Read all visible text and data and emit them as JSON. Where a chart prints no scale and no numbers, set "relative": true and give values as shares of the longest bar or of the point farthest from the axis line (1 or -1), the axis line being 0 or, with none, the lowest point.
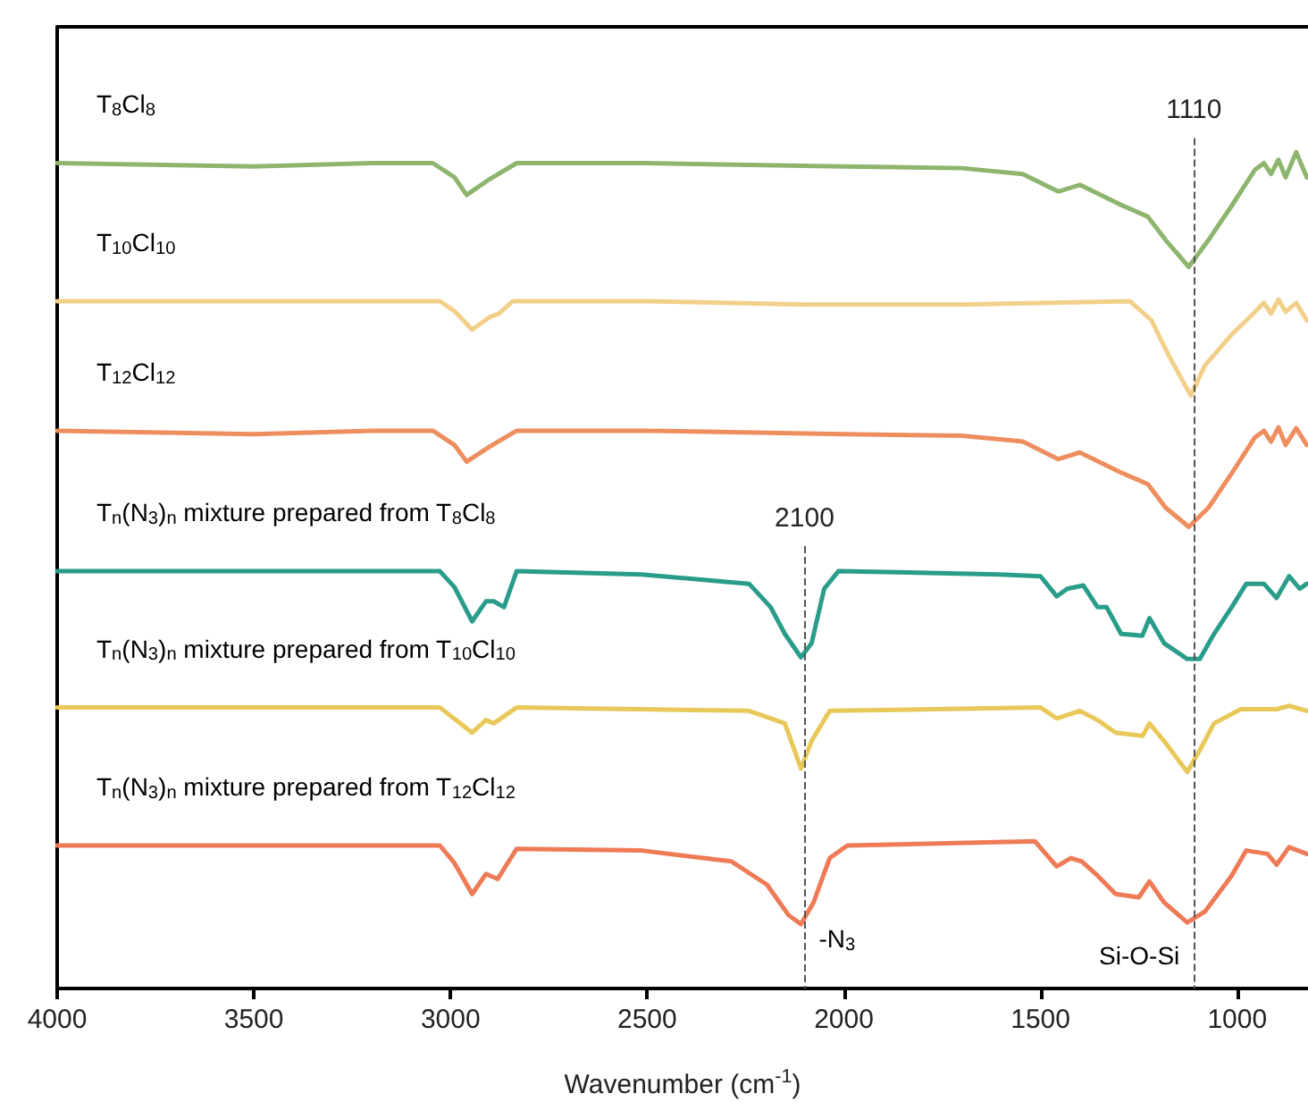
{
  "chart_data": {
    "type": "line",
    "relative": true,
    "xlabel": "Wavenumber (cm$^{-1}$)",
    "xlim": [
      4000,
      820
    ],
    "xticks": [
      4000,
      3500,
      3000,
      2500,
      2000,
      1500,
      1000
    ],
    "marker": "none",
    "series": [
      {
        "name": "T$_{8}$Cl$_{8}$",
        "color": "#8db56e",
        "x": [
          4000,
          3500,
          3200,
          3045,
          2990,
          2959,
          2900,
          2832,
          2500,
          2000,
          1700,
          1545,
          1455,
          1400,
          1300,
          1227,
          1182,
          1123,
          1073,
          1014,
          955,
          932,
          914,
          895,
          877,
          850,
          823
        ],
        "values": [
          0.987,
          0.983,
          0.987,
          0.987,
          0.97,
          0.949,
          0.968,
          0.987,
          0.987,
          0.983,
          0.981,
          0.974,
          0.953,
          0.961,
          0.938,
          0.923,
          0.895,
          0.863,
          0.895,
          0.936,
          0.979,
          0.987,
          0.974,
          0.991,
          0.97,
          1.0,
          0.97
        ]
      },
      {
        "name": "T$_{10}$Cl$_{10}$",
        "color": "#f2d08a",
        "x": [
          4000,
          3500,
          3027,
          2990,
          2945,
          2900,
          2877,
          2841,
          2500,
          2100,
          1700,
          1273,
          1218,
          1173,
          1118,
          1082,
          1014,
          968,
          932,
          914,
          895,
          877,
          850,
          823
        ],
        "values": [
          0.822,
          0.822,
          0.822,
          0.81,
          0.788,
          0.803,
          0.807,
          0.822,
          0.822,
          0.818,
          0.818,
          0.822,
          0.799,
          0.756,
          0.709,
          0.745,
          0.782,
          0.803,
          0.82,
          0.807,
          0.824,
          0.809,
          0.82,
          0.799
        ]
      },
      {
        "name": "T$_{12}$Cl$_{12}$",
        "color": "#ee8e5e",
        "x": [
          4000,
          3500,
          3200,
          3045,
          2990,
          2959,
          2900,
          2832,
          2500,
          2000,
          1700,
          1545,
          1455,
          1400,
          1300,
          1227,
          1182,
          1123,
          1073,
          1014,
          955,
          932,
          914,
          895,
          877,
          850,
          823
        ],
        "values": [
          0.667,
          0.663,
          0.667,
          0.667,
          0.65,
          0.63,
          0.648,
          0.667,
          0.667,
          0.663,
          0.661,
          0.654,
          0.633,
          0.641,
          0.618,
          0.603,
          0.575,
          0.552,
          0.575,
          0.616,
          0.659,
          0.667,
          0.654,
          0.671,
          0.65,
          0.67,
          0.65
        ]
      },
      {
        "name": "T$_{n}$(N$_{3}$)$_{n}$ mixture prepared from T$_{8}$Cl$_{8}$",
        "color": "#2a9d8a",
        "x": [
          4000,
          3500,
          3027,
          2990,
          2945,
          2910,
          2890,
          2864,
          2832,
          2514,
          2241,
          2186,
          2150,
          2109,
          2082,
          2050,
          2014,
          1786,
          1605,
          1500,
          1459,
          1432,
          1391,
          1355,
          1332,
          1295,
          1241,
          1223,
          1186,
          1127,
          1095,
          1059,
          1014,
          977,
          932,
          900,
          868,
          841,
          823
        ],
        "values": [
          0.499,
          0.499,
          0.499,
          0.48,
          0.439,
          0.463,
          0.463,
          0.456,
          0.499,
          0.495,
          0.484,
          0.456,
          0.424,
          0.396,
          0.413,
          0.478,
          0.499,
          0.497,
          0.495,
          0.493,
          0.469,
          0.478,
          0.482,
          0.456,
          0.456,
          0.424,
          0.422,
          0.443,
          0.413,
          0.394,
          0.394,
          0.424,
          0.456,
          0.484,
          0.484,
          0.467,
          0.493,
          0.478,
          0.484
        ]
      },
      {
        "name": "T$_{n}$(N$_{3}$)$_{n}$ mixture prepared from T$_{10}$Cl$_{10}$",
        "color": "#e9c85a",
        "x": [
          4000,
          3500,
          3027,
          2945,
          2910,
          2890,
          2832,
          2241,
          2150,
          2109,
          2082,
          2036,
          1500,
          1459,
          1400,
          1355,
          1309,
          1241,
          1223,
          1186,
          1127,
          1095,
          1059,
          991,
          900,
          868,
          823
        ],
        "values": [
          0.336,
          0.336,
          0.336,
          0.306,
          0.321,
          0.317,
          0.336,
          0.332,
          0.317,
          0.263,
          0.296,
          0.332,
          0.336,
          0.323,
          0.332,
          0.321,
          0.306,
          0.302,
          0.317,
          0.296,
          0.259,
          0.285,
          0.317,
          0.334,
          0.334,
          0.338,
          0.332
        ]
      },
      {
        "name": "T$_{n}$(N$_{3}$)$_{n}$ mixture prepared from T$_{12}$Cl$_{12}$",
        "color": "#ee7a56",
        "x": [
          4000,
          3500,
          3027,
          2990,
          2945,
          2910,
          2880,
          2832,
          2514,
          2286,
          2195,
          2141,
          2109,
          2077,
          2036,
          1991,
          1514,
          1459,
          1423,
          1395,
          1355,
          1309,
          1250,
          1223,
          1186,
          1127,
          1082,
          1014,
          977,
          923,
          900,
          868,
          823
        ],
        "values": [
          0.171,
          0.171,
          0.171,
          0.15,
          0.113,
          0.137,
          0.131,
          0.167,
          0.165,
          0.152,
          0.124,
          0.088,
          0.077,
          0.103,
          0.156,
          0.171,
          0.176,
          0.146,
          0.156,
          0.152,
          0.135,
          0.113,
          0.109,
          0.128,
          0.103,
          0.079,
          0.092,
          0.135,
          0.165,
          0.161,
          0.148,
          0.169,
          0.161
        ]
      }
    ],
    "ref_lines": [
      {
        "axis": "x",
        "value": 1110,
        "label": "1110",
        "color": "#555555",
        "line_style": "dashed"
      },
      {
        "axis": "x",
        "value": 2100,
        "label": "2100",
        "color": "#555555",
        "line_style": "dashed"
      }
    ],
    "annotations": [
      {
        "text": "-N$_{3}$",
        "x": 2100,
        "y": 0.06
      },
      {
        "text": "Si-O-Si",
        "x": 1110,
        "y": 0.04
      }
    ]
  }
}
